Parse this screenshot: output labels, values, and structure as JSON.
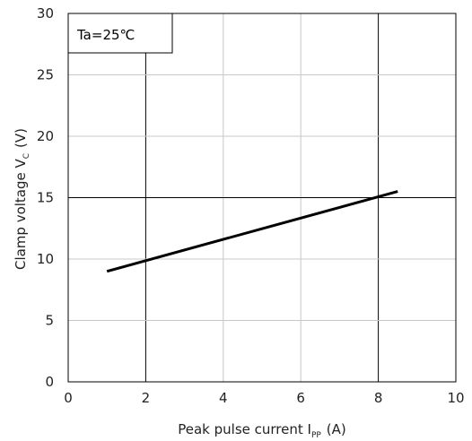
{
  "chart_data": {
    "type": "line",
    "annotation": "Ta=25℃",
    "xlabel": {
      "main": "Peak pulse current I",
      "sub": "PP",
      "unit": "(A)"
    },
    "ylabel": {
      "main": "Clamp voltage  V",
      "sub": "C",
      "unit": "(V)"
    },
    "xlim": [
      0,
      10
    ],
    "ylim": [
      0,
      30
    ],
    "xticks": [
      0,
      2,
      4,
      6,
      8,
      10
    ],
    "yticks": [
      0,
      5,
      10,
      15,
      20,
      25,
      30
    ],
    "grid": true,
    "legend": "none",
    "series": [
      {
        "x": [
          1,
          8.5
        ],
        "y": [
          9.0,
          15.5
        ],
        "color": "#000000"
      }
    ]
  }
}
